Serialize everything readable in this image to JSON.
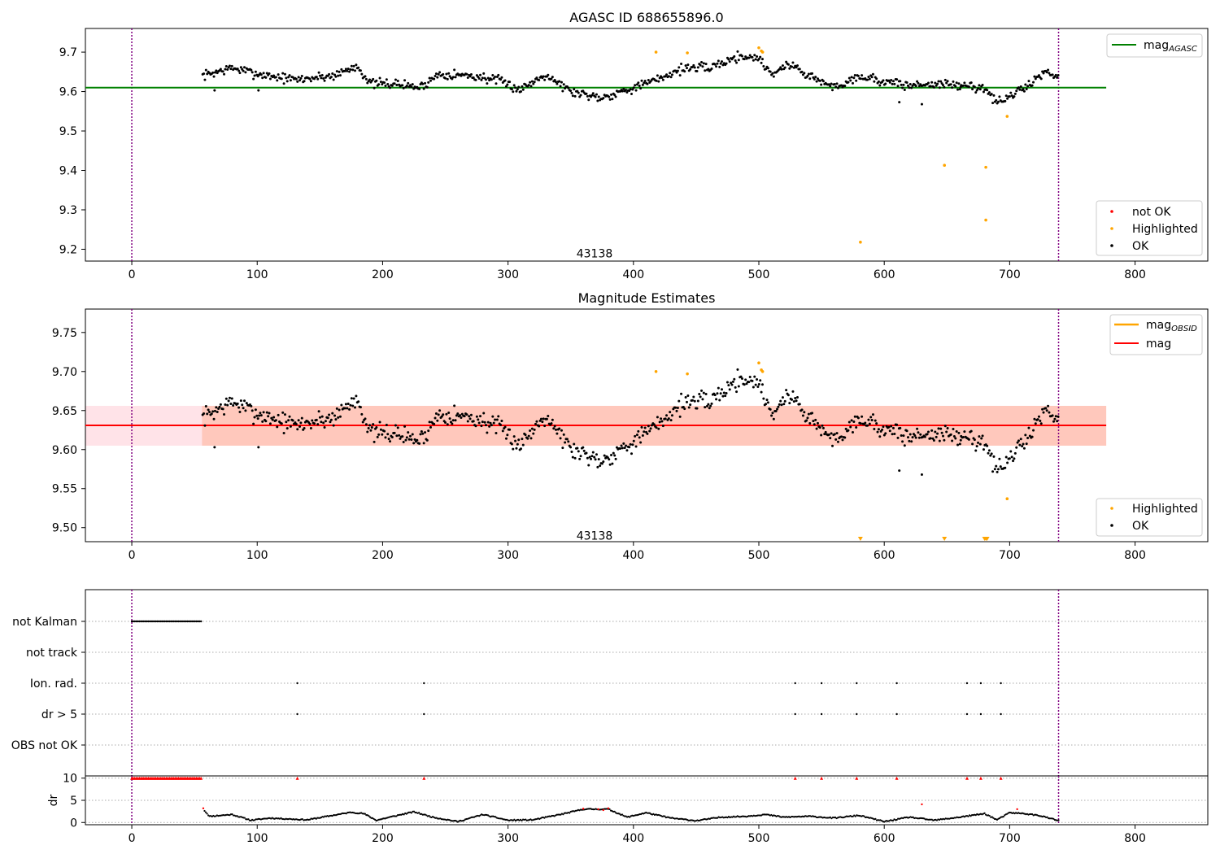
{
  "chart_data": [
    {
      "type": "scatter",
      "title": "AGASC ID 688655896.0",
      "xlabel": "",
      "ylabel": "",
      "xlim": [
        -37,
        858
      ],
      "ylim": [
        9.17,
        9.76
      ],
      "x_ticks": [
        0,
        100,
        200,
        300,
        400,
        500,
        600,
        700,
        800
      ],
      "y_ticks": [
        9.2,
        9.3,
        9.4,
        9.5,
        9.6,
        9.7
      ],
      "y_tick_labels": [
        "9.2",
        "9.3",
        "9.4",
        "9.5",
        "9.6",
        "9.7"
      ],
      "vlines": [
        0,
        739
      ],
      "vline_color": "#800080",
      "hline": {
        "y": 9.61,
        "x_start": -37,
        "x_end": 777,
        "color": "#008000"
      },
      "annotation": {
        "text": "43138",
        "x": 369,
        "y": 9.19
      },
      "legend_top": [
        {
          "label": "mag",
          "subscript": "AGASC",
          "kind": "line",
          "color": "#008000"
        }
      ],
      "legend_bottom": [
        {
          "label": "not OK",
          "color": "#ff0000"
        },
        {
          "label": "Highlighted",
          "color": "#ffa500"
        },
        {
          "label": "OK",
          "color": "#000000"
        }
      ],
      "ok_trend": [
        [
          56,
          9.64
        ],
        [
          80,
          9.66
        ],
        [
          100,
          9.645
        ],
        [
          130,
          9.63
        ],
        [
          160,
          9.64
        ],
        [
          180,
          9.665
        ],
        [
          190,
          9.62
        ],
        [
          210,
          9.62
        ],
        [
          230,
          9.61
        ],
        [
          245,
          9.645
        ],
        [
          270,
          9.64
        ],
        [
          290,
          9.63
        ],
        [
          310,
          9.605
        ],
        [
          330,
          9.645
        ],
        [
          350,
          9.6
        ],
        [
          375,
          9.585
        ],
        [
          395,
          9.605
        ],
        [
          415,
          9.625
        ],
        [
          440,
          9.66
        ],
        [
          460,
          9.66
        ],
        [
          485,
          9.69
        ],
        [
          500,
          9.685
        ],
        [
          510,
          9.645
        ],
        [
          525,
          9.67
        ],
        [
          540,
          9.64
        ],
        [
          560,
          9.61
        ],
        [
          580,
          9.64
        ],
        [
          600,
          9.625
        ],
        [
          620,
          9.615
        ],
        [
          640,
          9.62
        ],
        [
          660,
          9.615
        ],
        [
          680,
          9.61
        ],
        [
          690,
          9.57
        ],
        [
          710,
          9.605
        ],
        [
          728,
          9.65
        ],
        [
          739,
          9.64
        ]
      ],
      "ok_noise": 0.012,
      "ok_outliers": [
        [
          66,
          9.603
        ],
        [
          101,
          9.603
        ],
        [
          612,
          9.573
        ],
        [
          630,
          9.568
        ],
        [
          661,
          9.612
        ]
      ],
      "highlighted": [
        [
          418,
          9.7
        ],
        [
          443,
          9.698
        ],
        [
          500,
          9.711
        ],
        [
          502,
          9.703
        ],
        [
          503,
          9.7
        ],
        [
          581,
          9.218
        ],
        [
          648,
          9.413
        ],
        [
          681,
          9.408
        ],
        [
          681,
          9.274
        ],
        [
          698,
          9.537
        ]
      ]
    },
    {
      "type": "scatter",
      "title": "Magnitude Estimates",
      "xlabel": "",
      "ylabel": "",
      "xlim": [
        -37,
        858
      ],
      "ylim": [
        9.482,
        9.78
      ],
      "x_ticks": [
        0,
        100,
        200,
        300,
        400,
        500,
        600,
        700,
        800
      ],
      "y_ticks": [
        9.5,
        9.55,
        9.6,
        9.65,
        9.7,
        9.75
      ],
      "y_tick_labels": [
        "9.50",
        "9.55",
        "9.60",
        "9.65",
        "9.70",
        "9.75"
      ],
      "vlines": [
        0,
        739
      ],
      "band_pink": {
        "y_lo": 9.605,
        "y_hi": 9.656,
        "x_start": -37,
        "x_end": 777
      },
      "band_orange": {
        "y_lo": 9.605,
        "y_hi": 9.656,
        "x_start": 56,
        "x_end": 777
      },
      "mag_line": {
        "y": 9.631,
        "color": "#ff0000"
      },
      "annotation": {
        "text": "43138",
        "x": 369,
        "y": 9.49
      },
      "legend_top": [
        {
          "label": "mag",
          "subscript": "OBSID",
          "kind": "line",
          "color": "#ffa500"
        },
        {
          "label": "mag",
          "subscript": "",
          "kind": "line",
          "color": "#ff0000"
        }
      ],
      "legend_bottom": [
        {
          "label": "Highlighted",
          "color": "#ffa500"
        },
        {
          "label": "OK",
          "color": "#000000"
        }
      ],
      "highlighted": [
        [
          418,
          9.7
        ],
        [
          443,
          9.697
        ],
        [
          500,
          9.711
        ],
        [
          502,
          9.702
        ],
        [
          503,
          9.7
        ],
        [
          698,
          9.537
        ]
      ],
      "off_scale_markers": [
        581,
        648,
        680,
        681,
        682
      ]
    },
    {
      "type": "scatter",
      "title": "",
      "xlabel": "",
      "xlim": [
        -37,
        858
      ],
      "x_ticks": [
        0,
        100,
        200,
        300,
        400,
        500,
        600,
        700,
        800
      ],
      "vlines": [
        0,
        739
      ],
      "flag_rows": [
        "not Kalman",
        "not track",
        "Ion. rad.",
        "dr > 5",
        "OBS not OK"
      ],
      "not_kalman_range": [
        0,
        56
      ],
      "ion_rad_times": [
        132,
        233,
        529,
        550,
        578,
        610,
        666,
        677,
        693
      ],
      "dr_gt5_times": [
        132,
        233,
        529,
        550,
        578,
        610,
        666,
        677,
        693
      ],
      "dr_panel": {
        "ylabel": "dr",
        "ylim": [
          -0.5,
          10.5
        ],
        "y_ticks": [
          0,
          5,
          10
        ],
        "y_tick_labels": [
          "0",
          "5",
          "10"
        ],
        "capped_value": 10,
        "capped_ranges": [
          [
            0,
            56
          ]
        ],
        "capped_times": [
          132,
          233,
          529,
          550,
          578,
          610,
          666,
          677,
          693
        ],
        "dr_trend": [
          [
            57,
            3.0
          ],
          [
            62,
            1.4
          ],
          [
            80,
            1.8
          ],
          [
            95,
            0.5
          ],
          [
            110,
            1.0
          ],
          [
            140,
            0.6
          ],
          [
            160,
            1.6
          ],
          [
            175,
            2.3
          ],
          [
            185,
            2.0
          ],
          [
            195,
            0.5
          ],
          [
            215,
            1.8
          ],
          [
            225,
            2.4
          ],
          [
            240,
            1.2
          ],
          [
            260,
            0.2
          ],
          [
            280,
            1.8
          ],
          [
            300,
            0.5
          ],
          [
            320,
            0.6
          ],
          [
            345,
            2.0
          ],
          [
            360,
            3.0
          ],
          [
            380,
            3.0
          ],
          [
            395,
            1.2
          ],
          [
            410,
            2.2
          ],
          [
            430,
            1.0
          ],
          [
            450,
            0.4
          ],
          [
            470,
            1.2
          ],
          [
            490,
            1.4
          ],
          [
            505,
            1.8
          ],
          [
            520,
            1.2
          ],
          [
            540,
            1.4
          ],
          [
            560,
            1.0
          ],
          [
            580,
            1.6
          ],
          [
            600,
            0.2
          ],
          [
            620,
            1.2
          ],
          [
            640,
            0.5
          ],
          [
            660,
            1.2
          ],
          [
            680,
            2.0
          ],
          [
            690,
            0.6
          ],
          [
            700,
            2.2
          ],
          [
            712,
            2.0
          ],
          [
            725,
            1.5
          ],
          [
            739,
            0.4
          ]
        ],
        "red_points": [
          [
            57,
            3.2
          ],
          [
            360,
            3.1
          ],
          [
            372,
            3.0
          ],
          [
            376,
            2.8
          ],
          [
            380,
            3.2
          ],
          [
            630,
            4.1
          ],
          [
            706,
            3.0
          ]
        ]
      }
    }
  ]
}
